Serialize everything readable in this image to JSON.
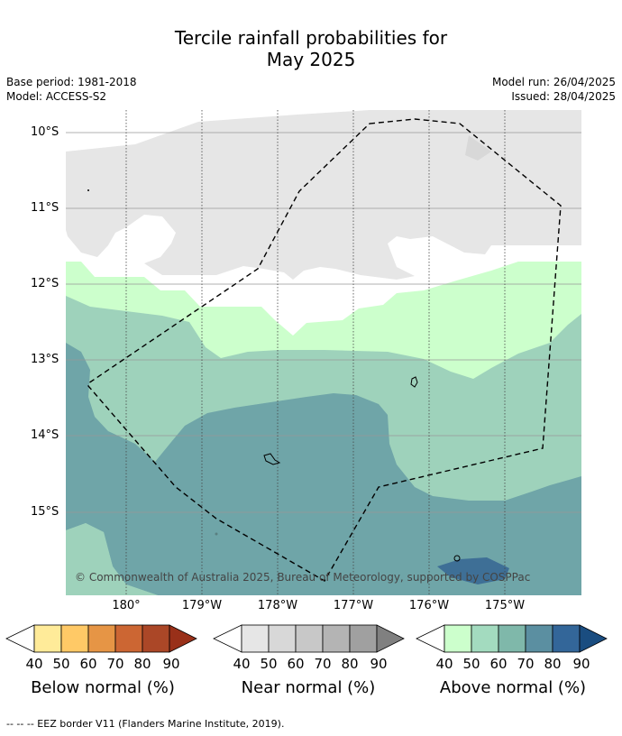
{
  "title": {
    "line1": "Tercile rainfall probabilities for",
    "line2": "May 2025"
  },
  "meta": {
    "base_period": "Base period: 1981-2018",
    "model": "Model: ACCESS-S2",
    "model_run": "Model run: 26/04/2025",
    "issued": "Issued: 28/04/2025"
  },
  "map": {
    "lat_labels": [
      "10°S",
      "11°S",
      "12°S",
      "13°S",
      "14°S",
      "15°S"
    ],
    "lon_labels": [
      "180°",
      "179°W",
      "178°W",
      "177°W",
      "176°W",
      "175°W"
    ],
    "copyright": "© Commonwealth of Australia 2025, Bureau of Meteorology, supported by COSPPac",
    "colors": {
      "near_normal_40": "#e6e6e6",
      "above_40": "#ccffcc",
      "above_50": "#9ed2bb",
      "above_60": "#6fa5a8",
      "above_80": "#3e6f96"
    }
  },
  "colorbars": [
    {
      "label": "Below normal (%)",
      "ticks": [
        "40",
        "50",
        "60",
        "70",
        "80",
        "90"
      ],
      "colors": [
        "#ffeb99",
        "#ffc966",
        "#e69545",
        "#cc6633",
        "#ab4727",
        "#993019"
      ]
    },
    {
      "label": "Near normal (%)",
      "ticks": [
        "40",
        "50",
        "60",
        "70",
        "80",
        "90"
      ],
      "colors": [
        "#e6e6e6",
        "#d8d8d8",
        "#c8c8c8",
        "#b4b4b4",
        "#a0a0a0",
        "#808080"
      ]
    },
    {
      "label": "Above normal (%)",
      "ticks": [
        "40",
        "50",
        "60",
        "70",
        "80",
        "90"
      ],
      "colors": [
        "#ccffcc",
        "#a3dbbf",
        "#7fb8aa",
        "#5b8fa1",
        "#336699",
        "#1a4d80"
      ]
    }
  ],
  "footer": "--  --  -- EEZ border V11 (Flanders Marine Institute, 2019)."
}
